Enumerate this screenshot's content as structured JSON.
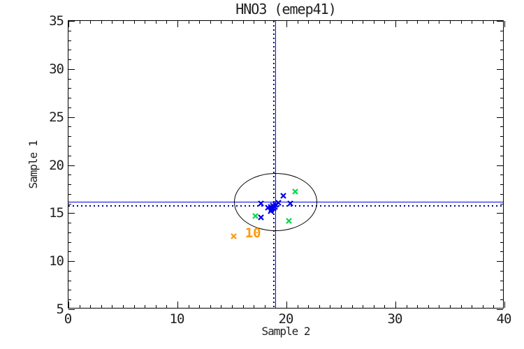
{
  "figure": {
    "background": "#ffffff",
    "text_color": "#1f1f1f"
  },
  "chart_data": {
    "type": "scatter",
    "title": "HNO3 (emep41)",
    "xlabel": "Sample 2",
    "ylabel": "Sample 1",
    "xlim": [
      0,
      40
    ],
    "ylim": [
      5,
      35
    ],
    "x_major_ticks": [
      0,
      10,
      20,
      30,
      40
    ],
    "y_major_ticks": [
      5,
      10,
      15,
      20,
      25,
      30,
      35
    ],
    "minor_tick_step": 1,
    "grid": false,
    "legend": "none",
    "axis_color": "#000000",
    "series": [
      {
        "name": "sample-points-blue",
        "color": "#0000ee",
        "marker": "x",
        "points": [
          [
            19.7,
            17.1
          ],
          [
            17.6,
            16.3
          ],
          [
            20.3,
            16.3
          ],
          [
            19.0,
            16.2
          ],
          [
            19.2,
            16.4
          ],
          [
            18.9,
            16.0
          ],
          [
            18.7,
            16.1
          ],
          [
            18.5,
            16.0
          ],
          [
            18.3,
            15.9
          ],
          [
            18.6,
            15.7
          ],
          [
            18.5,
            15.5
          ],
          [
            18.8,
            15.8
          ],
          [
            17.6,
            14.9
          ]
        ]
      },
      {
        "name": "sample-points-green",
        "color": "#00d648",
        "marker": "x",
        "points": [
          [
            20.8,
            17.6
          ],
          [
            17.1,
            15.0
          ],
          [
            20.2,
            14.5
          ]
        ]
      },
      {
        "name": "sample-points-orange",
        "color": "#ff9800",
        "marker": "x",
        "points": [
          [
            15.1,
            12.9
          ]
        ],
        "point_label": {
          "text": "10",
          "x": 16.2,
          "y": 12.9,
          "color": "#ff9800"
        }
      }
    ],
    "reference_lines": [
      {
        "style": "solid",
        "orientation": "horizontal",
        "value": 16.2,
        "color": "#0000ee"
      },
      {
        "style": "solid",
        "orientation": "vertical",
        "value": 19.0,
        "color": "#0000ee"
      },
      {
        "style": "dotted",
        "orientation": "horizontal",
        "value": 15.8,
        "color": "#000085"
      },
      {
        "style": "dotted",
        "orientation": "vertical",
        "value": 18.8,
        "color": "#000085"
      }
    ],
    "ellipse": {
      "cx": 19.0,
      "cy": 16.15,
      "rx": 3.8,
      "ry": 3.0,
      "color": "#000000"
    }
  }
}
